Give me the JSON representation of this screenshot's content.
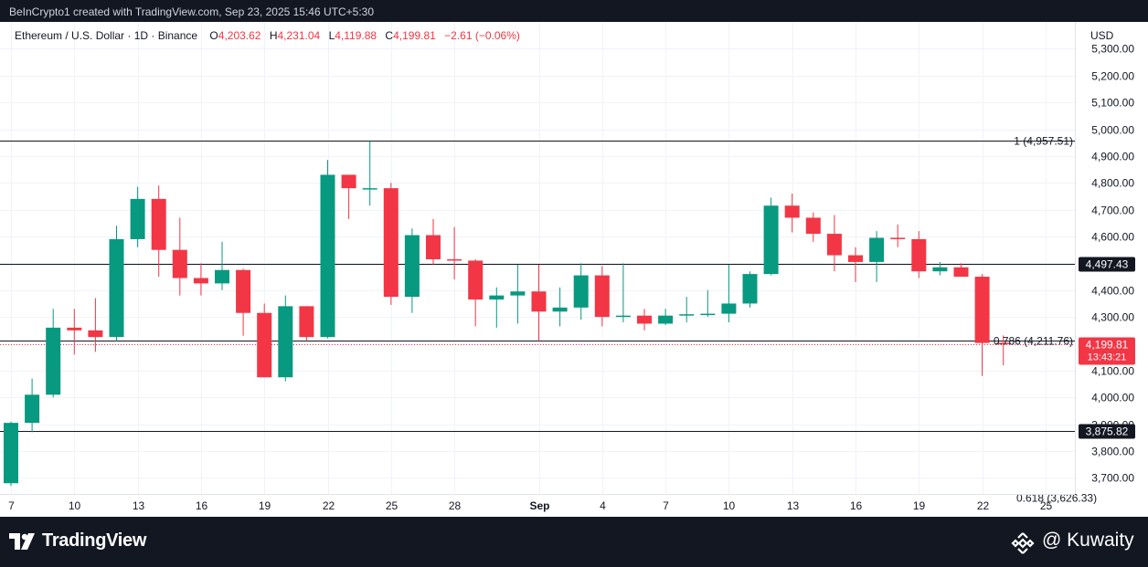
{
  "header": {
    "attribution": "BeInCrypto1 created with TradingView.com, Sep 23, 2025 15:46 UTC+5:30"
  },
  "legend": {
    "symbol": "Ethereum / U.S. Dollar · 1D · Binance",
    "o_label": "O",
    "o_value": "4,203.62",
    "h_label": "H",
    "h_value": "4,231.04",
    "l_label": "L",
    "l_value": "4,119.88",
    "c_label": "C",
    "c_value": "4,199.81",
    "change": "−2.61 (−0.06%)"
  },
  "footer": {
    "brand": "TradingView",
    "watermark": "@ Kuwaity"
  },
  "colors": {
    "up": "#089981",
    "down": "#f23645",
    "background": "#ffffff",
    "grid": "#f0f3fa",
    "level_line": "#131722",
    "text": "#131722",
    "frame": "#131722"
  },
  "icons": [
    "tradingview-logo-icon",
    "binance-logo-icon"
  ],
  "chart_data": {
    "type": "candlestick",
    "currency_label": "USD",
    "y_ticks": [
      3700,
      3800,
      3900,
      4000,
      4100,
      4200,
      4300,
      4400,
      4500,
      4600,
      4700,
      4800,
      4900,
      5000,
      5100,
      5200,
      5300
    ],
    "y_tick_labels": [
      "3,700.00",
      "3,800.00",
      "3,900.00",
      "4,000.00",
      "4,100.00",
      "4,200.00",
      "4,300.00",
      "4,400.00",
      "4,500.00",
      "4,600.00",
      "4,700.00",
      "4,800.00",
      "4,900.00",
      "5,000.00",
      "5,100.00",
      "5,200.00",
      "5,300.00"
    ],
    "ylim": [
      3640,
      5400
    ],
    "x_ticks": [
      {
        "day": 7,
        "label": "7"
      },
      {
        "day": 10,
        "label": "10"
      },
      {
        "day": 13,
        "label": "13"
      },
      {
        "day": 16,
        "label": "16"
      },
      {
        "day": 19,
        "label": "19"
      },
      {
        "day": 22,
        "label": "22"
      },
      {
        "day": 25,
        "label": "25"
      },
      {
        "day": 28,
        "label": "28"
      },
      {
        "day": 32,
        "label": "Sep"
      },
      {
        "day": 35,
        "label": "4"
      },
      {
        "day": 38,
        "label": "7"
      },
      {
        "day": 41,
        "label": "10"
      },
      {
        "day": 44,
        "label": "13"
      },
      {
        "day": 47,
        "label": "16"
      },
      {
        "day": 50,
        "label": "19"
      },
      {
        "day": 53,
        "label": "22"
      },
      {
        "day": 56,
        "label": "25"
      }
    ],
    "xlim": [
      7,
      58
    ],
    "candles": [
      {
        "day": 7,
        "o": 3680,
        "h": 3910,
        "l": 3670,
        "c": 3905
      },
      {
        "day": 8,
        "o": 3905,
        "h": 4070,
        "l": 3870,
        "c": 4010
      },
      {
        "day": 9,
        "o": 4010,
        "h": 4330,
        "l": 4000,
        "c": 4260
      },
      {
        "day": 10,
        "o": 4260,
        "h": 4330,
        "l": 4160,
        "c": 4250
      },
      {
        "day": 11,
        "o": 4250,
        "h": 4370,
        "l": 4170,
        "c": 4225
      },
      {
        "day": 12,
        "o": 4225,
        "h": 4640,
        "l": 4210,
        "c": 4590
      },
      {
        "day": 13,
        "o": 4590,
        "h": 4785,
        "l": 4560,
        "c": 4740
      },
      {
        "day": 14,
        "o": 4740,
        "h": 4790,
        "l": 4450,
        "c": 4550
      },
      {
        "day": 15,
        "o": 4550,
        "h": 4670,
        "l": 4380,
        "c": 4445
      },
      {
        "day": 16,
        "o": 4445,
        "h": 4500,
        "l": 4380,
        "c": 4425
      },
      {
        "day": 17,
        "o": 4425,
        "h": 4580,
        "l": 4400,
        "c": 4475
      },
      {
        "day": 18,
        "o": 4475,
        "h": 4480,
        "l": 4230,
        "c": 4315
      },
      {
        "day": 19,
        "o": 4315,
        "h": 4350,
        "l": 4075,
        "c": 4075
      },
      {
        "day": 20,
        "o": 4075,
        "h": 4380,
        "l": 4060,
        "c": 4340
      },
      {
        "day": 21,
        "o": 4340,
        "h": 4340,
        "l": 4210,
        "c": 4225
      },
      {
        "day": 22,
        "o": 4225,
        "h": 4885,
        "l": 4220,
        "c": 4830
      },
      {
        "day": 23,
        "o": 4830,
        "h": 4830,
        "l": 4665,
        "c": 4780
      },
      {
        "day": 24,
        "o": 4780,
        "h": 4955,
        "l": 4715,
        "c": 4780
      },
      {
        "day": 25,
        "o": 4780,
        "h": 4800,
        "l": 4345,
        "c": 4375
      },
      {
        "day": 26,
        "o": 4375,
        "h": 4630,
        "l": 4315,
        "c": 4605
      },
      {
        "day": 27,
        "o": 4605,
        "h": 4665,
        "l": 4495,
        "c": 4515
      },
      {
        "day": 28,
        "o": 4515,
        "h": 4635,
        "l": 4440,
        "c": 4510
      },
      {
        "day": 29,
        "o": 4510,
        "h": 4515,
        "l": 4265,
        "c": 4365
      },
      {
        "day": 30,
        "o": 4365,
        "h": 4410,
        "l": 4260,
        "c": 4380
      },
      {
        "day": 31,
        "o": 4380,
        "h": 4495,
        "l": 4275,
        "c": 4395
      },
      {
        "day": 32,
        "o": 4395,
        "h": 4495,
        "l": 4210,
        "c": 4320
      },
      {
        "day": 33,
        "o": 4320,
        "h": 4410,
        "l": 4265,
        "c": 4335
      },
      {
        "day": 34,
        "o": 4335,
        "h": 4500,
        "l": 4290,
        "c": 4455
      },
      {
        "day": 35,
        "o": 4455,
        "h": 4490,
        "l": 4265,
        "c": 4300
      },
      {
        "day": 36,
        "o": 4300,
        "h": 4500,
        "l": 4280,
        "c": 4305
      },
      {
        "day": 37,
        "o": 4305,
        "h": 4330,
        "l": 4250,
        "c": 4275
      },
      {
        "day": 38,
        "o": 4275,
        "h": 4330,
        "l": 4270,
        "c": 4305
      },
      {
        "day": 39,
        "o": 4305,
        "h": 4375,
        "l": 4280,
        "c": 4310
      },
      {
        "day": 40,
        "o": 4310,
        "h": 4400,
        "l": 4300,
        "c": 4312
      },
      {
        "day": 41,
        "o": 4312,
        "h": 4495,
        "l": 4280,
        "c": 4350
      },
      {
        "day": 42,
        "o": 4350,
        "h": 4470,
        "l": 4335,
        "c": 4460
      },
      {
        "day": 43,
        "o": 4460,
        "h": 4745,
        "l": 4455,
        "c": 4715
      },
      {
        "day": 44,
        "o": 4715,
        "h": 4760,
        "l": 4615,
        "c": 4670
      },
      {
        "day": 45,
        "o": 4670,
        "h": 4690,
        "l": 4580,
        "c": 4610
      },
      {
        "day": 46,
        "o": 4610,
        "h": 4680,
        "l": 4470,
        "c": 4530
      },
      {
        "day": 47,
        "o": 4530,
        "h": 4560,
        "l": 4430,
        "c": 4505
      },
      {
        "day": 48,
        "o": 4505,
        "h": 4620,
        "l": 4430,
        "c": 4595
      },
      {
        "day": 49,
        "o": 4595,
        "h": 4645,
        "l": 4560,
        "c": 4590
      },
      {
        "day": 50,
        "o": 4590,
        "h": 4620,
        "l": 4445,
        "c": 4470
      },
      {
        "day": 51,
        "o": 4470,
        "h": 4505,
        "l": 4455,
        "c": 4485
      },
      {
        "day": 52,
        "o": 4485,
        "h": 4500,
        "l": 4450,
        "c": 4450
      },
      {
        "day": 53,
        "o": 4450,
        "h": 4460,
        "l": 4080,
        "c": 4203
      },
      {
        "day": 54,
        "o": 4203.62,
        "h": 4231.04,
        "l": 4119.88,
        "c": 4199.81
      }
    ],
    "levels": [
      {
        "value": 4957.51,
        "label": "1 (4,957.51)"
      },
      {
        "value": 4497.43,
        "label": "4,497.43",
        "badge": true
      },
      {
        "value": 4211.76,
        "label": "0.786 (4,211.76)"
      },
      {
        "value": 3875.82,
        "label": "3,875.82",
        "badge": true
      },
      {
        "value": 3626.33,
        "label": "0.618 (3,626.33)"
      }
    ],
    "last_price": {
      "value": 4199.81,
      "label": "4,199.81",
      "countdown": "13:43:21"
    }
  }
}
